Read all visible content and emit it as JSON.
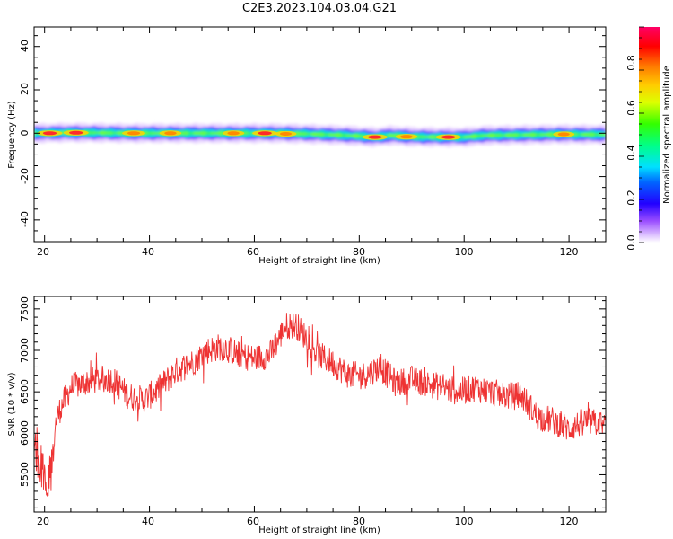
{
  "title": "C2E3.2023.104.03.04.G21",
  "chart_data": [
    {
      "type": "heatmap",
      "xlabel": "Height of straight line (km)",
      "ylabel": "Frequency (Hz)",
      "xlim": [
        18,
        127
      ],
      "ylim": [
        -50,
        49
      ],
      "xticks": [
        "20",
        "40",
        "60",
        "80",
        "100",
        "120"
      ],
      "yticks": [
        "-40",
        "-20",
        "0",
        "20",
        "40"
      ],
      "ridge": [
        {
          "x": 19,
          "f": 0.0
        },
        {
          "x": 24,
          "f": 0.3
        },
        {
          "x": 30,
          "f": 0.2
        },
        {
          "x": 36,
          "f": 0.0
        },
        {
          "x": 42,
          "f": 0.0
        },
        {
          "x": 48,
          "f": 0.0
        },
        {
          "x": 54,
          "f": 0.0
        },
        {
          "x": 60,
          "f": 0.0
        },
        {
          "x": 64,
          "f": 0.0
        },
        {
          "x": 70,
          "f": -0.3
        },
        {
          "x": 76,
          "f": -0.8
        },
        {
          "x": 80,
          "f": -1.3
        },
        {
          "x": 83,
          "f": -1.8
        },
        {
          "x": 86,
          "f": -1.0
        },
        {
          "x": 90,
          "f": -1.6
        },
        {
          "x": 95,
          "f": -1.8
        },
        {
          "x": 100,
          "f": -1.8
        },
        {
          "x": 104,
          "f": -1.0
        },
        {
          "x": 110,
          "f": -0.8
        },
        {
          "x": 118,
          "f": -0.5
        },
        {
          "x": 126,
          "f": -0.6
        }
      ],
      "hotspots": [
        {
          "x": 21,
          "f": 0.0,
          "a": 1.0
        },
        {
          "x": 26,
          "f": 0.2,
          "a": 1.0
        },
        {
          "x": 37,
          "f": 0.0,
          "a": 0.85
        },
        {
          "x": 44,
          "f": 0.0,
          "a": 0.75
        },
        {
          "x": 56,
          "f": 0.0,
          "a": 0.75
        },
        {
          "x": 62,
          "f": 0.0,
          "a": 1.0
        },
        {
          "x": 66,
          "f": -0.3,
          "a": 0.7
        },
        {
          "x": 83,
          "f": -1.8,
          "a": 1.0
        },
        {
          "x": 89,
          "f": -1.6,
          "a": 0.75
        },
        {
          "x": 97,
          "f": -1.8,
          "a": 1.0
        },
        {
          "x": 119,
          "f": -0.5,
          "a": 0.7
        }
      ],
      "colorbar": {
        "label": "Normalized spectral amplitude",
        "range": [
          0,
          1
        ],
        "ticks": [
          "0.0",
          "0.2",
          "0.4",
          "0.6",
          "0.8"
        ]
      }
    },
    {
      "type": "line",
      "xlabel": "Height of straight line (km)",
      "ylabel": "SNR (10 * v/v)",
      "xlim": [
        18,
        127
      ],
      "ylim": [
        5050,
        7650
      ],
      "xticks": [
        "20",
        "40",
        "60",
        "80",
        "100",
        "120"
      ],
      "yticks": [
        "5500",
        "6000",
        "6500",
        "7000",
        "7500"
      ],
      "color": "#ee3333",
      "series": [
        {
          "x": [
            18,
            19,
            20,
            21,
            22,
            23,
            25,
            27,
            30,
            33,
            36,
            39,
            42,
            45,
            48,
            51,
            54,
            57,
            60,
            63,
            66,
            68,
            70,
            72,
            75,
            78,
            81,
            84,
            87,
            90,
            93,
            96,
            99,
            102,
            105,
            108,
            111,
            114,
            117,
            120,
            123,
            127
          ],
          "y": [
            6150,
            5900,
            5750,
            5700,
            6100,
            6300,
            6550,
            6600,
            6650,
            6650,
            6450,
            6400,
            6550,
            6750,
            6850,
            7000,
            7050,
            6950,
            6900,
            6950,
            7300,
            7300,
            7150,
            6950,
            6850,
            6700,
            6700,
            6800,
            6600,
            6650,
            6600,
            6550,
            6500,
            6550,
            6500,
            6450,
            6450,
            6200,
            6150,
            6050,
            6150,
            6100
          ],
          "noise": 170
        }
      ]
    }
  ]
}
